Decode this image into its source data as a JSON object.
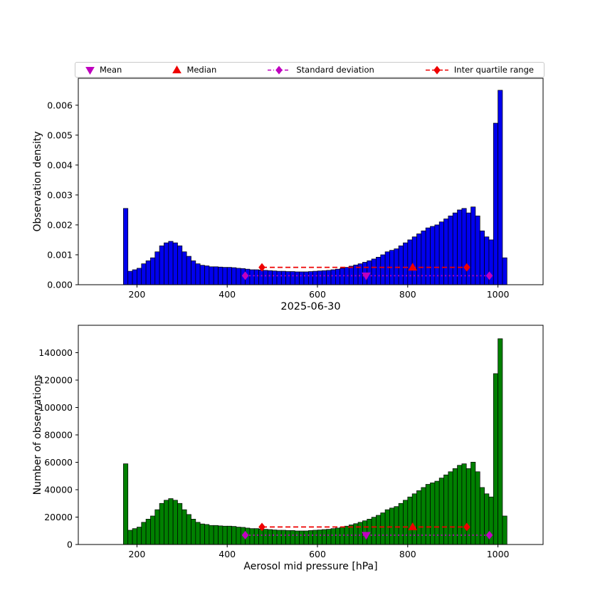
{
  "figure": {
    "background": "#ffffff",
    "date_title": "2025-06-30"
  },
  "legend": {
    "items": [
      {
        "label": "Mean",
        "marker": "triangle-down",
        "color": "#bf00bf"
      },
      {
        "label": "Median",
        "marker": "triangle-up",
        "color": "#ee0000"
      },
      {
        "label": "Standard deviation",
        "marker": "diamond-dashdot",
        "color": "#bf00bf"
      },
      {
        "label": "Inter quartile range",
        "marker": "diamond-dashed",
        "color": "#ee0000"
      }
    ]
  },
  "chart_data": [
    {
      "type": "bar",
      "id": "density-histogram",
      "title": "",
      "xlabel": "2025-06-30",
      "ylabel": "Observation density",
      "bar_color": "#0000ee",
      "edge_color": "#000000",
      "bin_start": 170,
      "bin_width": 10,
      "xlim": [
        70,
        1100
      ],
      "ylim": [
        0,
        0.0069
      ],
      "xticks": [
        200,
        400,
        600,
        800,
        1000
      ],
      "xtick_labels": [
        "200",
        "400",
        "600",
        "800",
        "1000"
      ],
      "yticks": [
        0,
        0.001,
        0.002,
        0.003,
        0.004,
        0.005,
        0.006
      ],
      "ytick_labels": [
        "0.000",
        "0.001",
        "0.002",
        "0.003",
        "0.004",
        "0.005",
        "0.006"
      ],
      "values": [
        0.00255,
        0.00045,
        0.0005,
        0.00055,
        0.0007,
        0.0008,
        0.0009,
        0.0011,
        0.0013,
        0.0014,
        0.00145,
        0.0014,
        0.0013,
        0.0011,
        0.00095,
        0.0008,
        0.0007,
        0.00065,
        0.00063,
        0.0006,
        0.0006,
        0.00059,
        0.00058,
        0.00058,
        0.00057,
        0.00055,
        0.00054,
        0.00052,
        0.0005,
        0.0005,
        0.00049,
        0.00048,
        0.00047,
        0.00046,
        0.00045,
        0.00045,
        0.00044,
        0.00044,
        0.00043,
        0.00043,
        0.00043,
        0.00044,
        0.00045,
        0.00046,
        0.00047,
        0.00048,
        0.0005,
        0.00052,
        0.00055,
        0.00058,
        0.00062,
        0.00066,
        0.0007,
        0.00075,
        0.0008,
        0.00086,
        0.00092,
        0.001,
        0.0011,
        0.00115,
        0.0012,
        0.0013,
        0.0014,
        0.0015,
        0.0016,
        0.0017,
        0.0018,
        0.0019,
        0.00195,
        0.002,
        0.0021,
        0.0022,
        0.0023,
        0.0024,
        0.0025,
        0.00255,
        0.0024,
        0.0026,
        0.0023,
        0.0018,
        0.0016,
        0.0015,
        0.0054,
        0.0065,
        0.0009
      ],
      "overlays": {
        "mean": {
          "x": 708,
          "y": 0.0003,
          "color": "#bf00bf"
        },
        "median": {
          "x": 811,
          "y": 0.00058,
          "color": "#ee0000"
        },
        "std": {
          "x1": 440,
          "x2": 981,
          "y": 0.0003,
          "color": "#bf00bf"
        },
        "iqr": {
          "x1": 477,
          "x2": 931,
          "y": 0.00058,
          "color": "#ee0000"
        }
      }
    },
    {
      "type": "bar",
      "id": "counts-histogram",
      "title": "",
      "xlabel": "Aerosol mid pressure [hPa]",
      "ylabel": "Number of observations",
      "bar_color": "#008000",
      "edge_color": "#000000",
      "bin_start": 170,
      "bin_width": 10,
      "xlim": [
        70,
        1100
      ],
      "ylim": [
        0,
        160000
      ],
      "xticks": [
        200,
        400,
        600,
        800,
        1000
      ],
      "xtick_labels": [
        "200",
        "400",
        "600",
        "800",
        "1000"
      ],
      "yticks": [
        0,
        20000,
        40000,
        60000,
        80000,
        100000,
        120000,
        140000
      ],
      "ytick_labels": [
        "0",
        "20000",
        "40000",
        "60000",
        "80000",
        "100000",
        "120000",
        "140000"
      ],
      "values": [
        58900,
        10400,
        11600,
        12700,
        16200,
        18500,
        20800,
        25400,
        30000,
        32300,
        33500,
        32300,
        30000,
        25400,
        21900,
        18500,
        16200,
        15000,
        14600,
        13900,
        13900,
        13600,
        13400,
        13400,
        13200,
        12700,
        12500,
        12000,
        11600,
        11600,
        11300,
        11100,
        10900,
        10600,
        10400,
        10400,
        10200,
        10200,
        9900,
        9900,
        9900,
        10200,
        10400,
        10600,
        10900,
        11100,
        11600,
        12000,
        12700,
        13400,
        14300,
        15200,
        16200,
        17300,
        18500,
        19900,
        21300,
        23100,
        25400,
        26600,
        27700,
        30000,
        32300,
        34700,
        37000,
        39300,
        41600,
        43900,
        45000,
        46200,
        48500,
        50800,
        53100,
        55400,
        57800,
        58900,
        55400,
        60100,
        53100,
        41600,
        37000,
        34700,
        124700,
        150200,
        20800
      ],
      "overlays": {
        "mean": {
          "x": 708,
          "y": 6800,
          "color": "#bf00bf"
        },
        "median": {
          "x": 811,
          "y": 12800,
          "color": "#ee0000"
        },
        "std": {
          "x1": 440,
          "x2": 981,
          "y": 6800,
          "color": "#bf00bf"
        },
        "iqr": {
          "x1": 477,
          "x2": 931,
          "y": 12800,
          "color": "#ee0000"
        }
      }
    }
  ]
}
